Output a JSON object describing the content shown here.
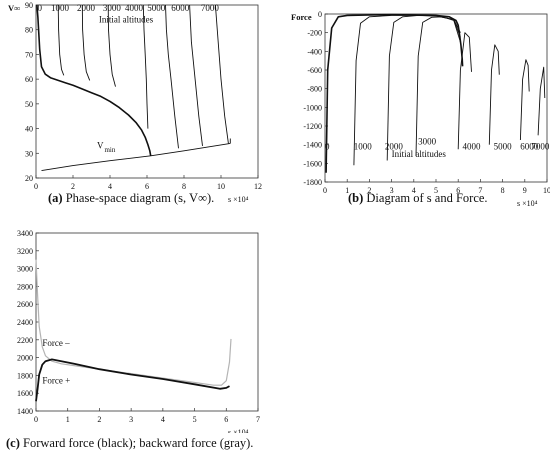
{
  "chart_data": [
    {
      "id": "a",
      "type": "line",
      "panel_label": "(a)",
      "caption": "Phase-space diagram (s, V∞).",
      "ylabel": "V∞",
      "x_exponent_label": "s ×10⁴",
      "xlim": [
        0,
        12
      ],
      "ylim": [
        20,
        90
      ],
      "x_ticks": [
        0,
        2,
        4,
        6,
        8,
        10,
        12
      ],
      "y_ticks": [
        20,
        30,
        40,
        50,
        60,
        70,
        80,
        90
      ],
      "annotations": [
        "Initial altitudes",
        "V",
        "min"
      ],
      "altitude_labels": [
        "0",
        "1000",
        "2000",
        "3000",
        "4000",
        "5000",
        "6000",
        "7000"
      ],
      "series": [
        {
          "color": "#111111",
          "x": [
            0.05,
            0.1,
            0.2,
            0.3,
            0.5,
            0.8,
            1.2,
            1.6,
            2.0,
            2.5,
            3.0,
            3.5,
            4.0,
            4.5,
            5.0,
            5.4,
            5.7,
            5.9,
            6.05,
            6.15,
            6.2
          ],
          "y": [
            90,
            85,
            72,
            65,
            62,
            60.5,
            59.5,
            58.5,
            57.5,
            56,
            54.5,
            53,
            51,
            48.5,
            45.5,
            42.5,
            39.5,
            36.5,
            33.5,
            31,
            29
          ]
        },
        {
          "color": "#111111",
          "x": [
            1.2,
            1.22,
            1.28,
            1.38,
            1.5
          ],
          "y": [
            90,
            80,
            70,
            64,
            61.5
          ]
        },
        {
          "color": "#111111",
          "x": [
            2.5,
            2.52,
            2.6,
            2.72,
            2.9
          ],
          "y": [
            90,
            80,
            70,
            63,
            59.5
          ]
        },
        {
          "color": "#111111",
          "x": [
            3.9,
            3.92,
            4.0,
            4.12,
            4.3
          ],
          "y": [
            90,
            80,
            70,
            62,
            57
          ]
        },
        {
          "color": "#111111",
          "x": [
            5.8,
            5.84,
            5.9,
            5.96,
            6.0,
            6.05
          ],
          "y": [
            90,
            80,
            70,
            60,
            50,
            40
          ]
        },
        {
          "color": "#111111",
          "x": [
            7.0,
            7.05,
            7.15,
            7.3,
            7.5,
            7.7
          ],
          "y": [
            90,
            80,
            70,
            60,
            45,
            32
          ]
        },
        {
          "color": "#111111",
          "x": [
            8.3,
            8.4,
            8.6,
            8.8,
            9.0
          ],
          "y": [
            90,
            75,
            60,
            45,
            33
          ]
        },
        {
          "color": "#111111",
          "x": [
            9.7,
            9.85,
            10.0,
            10.2,
            10.4
          ],
          "y": [
            90,
            75,
            60,
            45,
            34
          ]
        },
        {
          "color": "#111111",
          "x": [
            0.3,
            2,
            4,
            6.2,
            8,
            10.5
          ],
          "y": [
            23,
            25,
            27,
            29,
            31,
            34
          ]
        },
        {
          "color": "#111111",
          "x": [
            10.5,
            10.5
          ],
          "y": [
            34,
            36
          ]
        }
      ]
    },
    {
      "id": "b",
      "type": "line",
      "panel_label": "(b)",
      "caption": "Diagram of s and Force.",
      "ylabel": "Force",
      "x_exponent_label": "s ×10⁴",
      "xlim": [
        0,
        10
      ],
      "ylim": [
        -1800,
        0
      ],
      "x_ticks": [
        0,
        1,
        2,
        3,
        4,
        5,
        6,
        7,
        8,
        9,
        10
      ],
      "y_ticks": [
        0,
        -200,
        -400,
        -600,
        -800,
        -1000,
        -1200,
        -1400,
        -1600,
        -1800
      ],
      "annotations": [
        "Initial altitudes"
      ],
      "altitude_labels": [
        "0",
        "1000",
        "2000",
        "3000",
        "4000",
        "5000",
        "6000",
        "7000"
      ],
      "series": [
        {
          "color": "#111111",
          "x": [
            0.05,
            0.12,
            0.3,
            0.6,
            1.0,
            2.0,
            3.0,
            4.0,
            5.0,
            5.6,
            5.9,
            6.0,
            6.05,
            6.12,
            6.18,
            6.2
          ],
          "y": [
            -1700,
            -600,
            -150,
            -30,
            -15,
            -10,
            -8,
            -10,
            -15,
            -30,
            -70,
            -120,
            -200,
            -330,
            -480,
            -560
          ]
        },
        {
          "color": "#111111",
          "x": [
            1.3,
            1.4,
            1.6,
            2.0,
            3.0,
            4.0,
            5.0,
            5.8,
            6.1
          ],
          "y": [
            -1620,
            -500,
            -100,
            -30,
            -15,
            -15,
            -20,
            -60,
            -200
          ]
        },
        {
          "color": "#111111",
          "x": [
            2.8,
            2.9,
            3.1,
            3.5,
            4.2,
            5.0,
            5.8,
            6.1
          ],
          "y": [
            -1570,
            -450,
            -90,
            -30,
            -15,
            -20,
            -60,
            -250
          ]
        },
        {
          "color": "#111111",
          "x": [
            4.1,
            4.2,
            4.4,
            4.8,
            5.3,
            5.8,
            6.1
          ],
          "y": [
            -1520,
            -450,
            -90,
            -35,
            -30,
            -70,
            -300
          ]
        },
        {
          "color": "#111111",
          "x": [
            6.0,
            6.1,
            6.3,
            6.5,
            6.6
          ],
          "y": [
            -1450,
            -600,
            -200,
            -250,
            -620
          ]
        },
        {
          "color": "#111111",
          "x": [
            7.4,
            7.5,
            7.65,
            7.8,
            7.85
          ],
          "y": [
            -1400,
            -600,
            -330,
            -400,
            -650
          ]
        },
        {
          "color": "#111111",
          "x": [
            8.8,
            8.9,
            9.05,
            9.15,
            9.2
          ],
          "y": [
            -1350,
            -700,
            -490,
            -550,
            -830
          ]
        },
        {
          "color": "#111111",
          "x": [
            9.6,
            9.7,
            9.85,
            9.9
          ],
          "y": [
            -1300,
            -800,
            -570,
            -900
          ]
        }
      ]
    },
    {
      "id": "c",
      "type": "line",
      "panel_label": "(c)",
      "caption": "Forward force (black); backward force (gray).",
      "x_exponent_label": "s ×10⁴",
      "xlim": [
        0,
        7
      ],
      "ylim": [
        1400,
        3400
      ],
      "x_ticks": [
        0,
        1,
        2,
        3,
        4,
        5,
        6,
        7
      ],
      "y_ticks": [
        1400,
        1600,
        1800,
        2000,
        2200,
        2400,
        2600,
        2800,
        3000,
        3200,
        3400
      ],
      "series": [
        {
          "name": "Force –",
          "color": "#b4b4b4",
          "x": [
            0.0,
            0.05,
            0.1,
            0.2,
            0.3,
            0.5,
            0.8,
            1.2,
            2.0,
            3.0,
            4.0,
            5.0,
            5.6,
            5.85,
            6.0,
            6.1,
            6.15
          ],
          "y": [
            3100,
            2700,
            2350,
            2120,
            2020,
            1960,
            1930,
            1910,
            1870,
            1820,
            1770,
            1720,
            1690,
            1690,
            1740,
            1950,
            2210
          ]
        },
        {
          "name": "Force +",
          "color": "#111111",
          "x": [
            0.0,
            0.05,
            0.1,
            0.2,
            0.3,
            0.5,
            0.8,
            1.2,
            2.0,
            3.0,
            4.0,
            5.0,
            5.8,
            6.0,
            6.1
          ],
          "y": [
            1510,
            1650,
            1810,
            1920,
            1960,
            1980,
            1960,
            1930,
            1870,
            1810,
            1760,
            1700,
            1650,
            1660,
            1680
          ]
        }
      ]
    }
  ]
}
